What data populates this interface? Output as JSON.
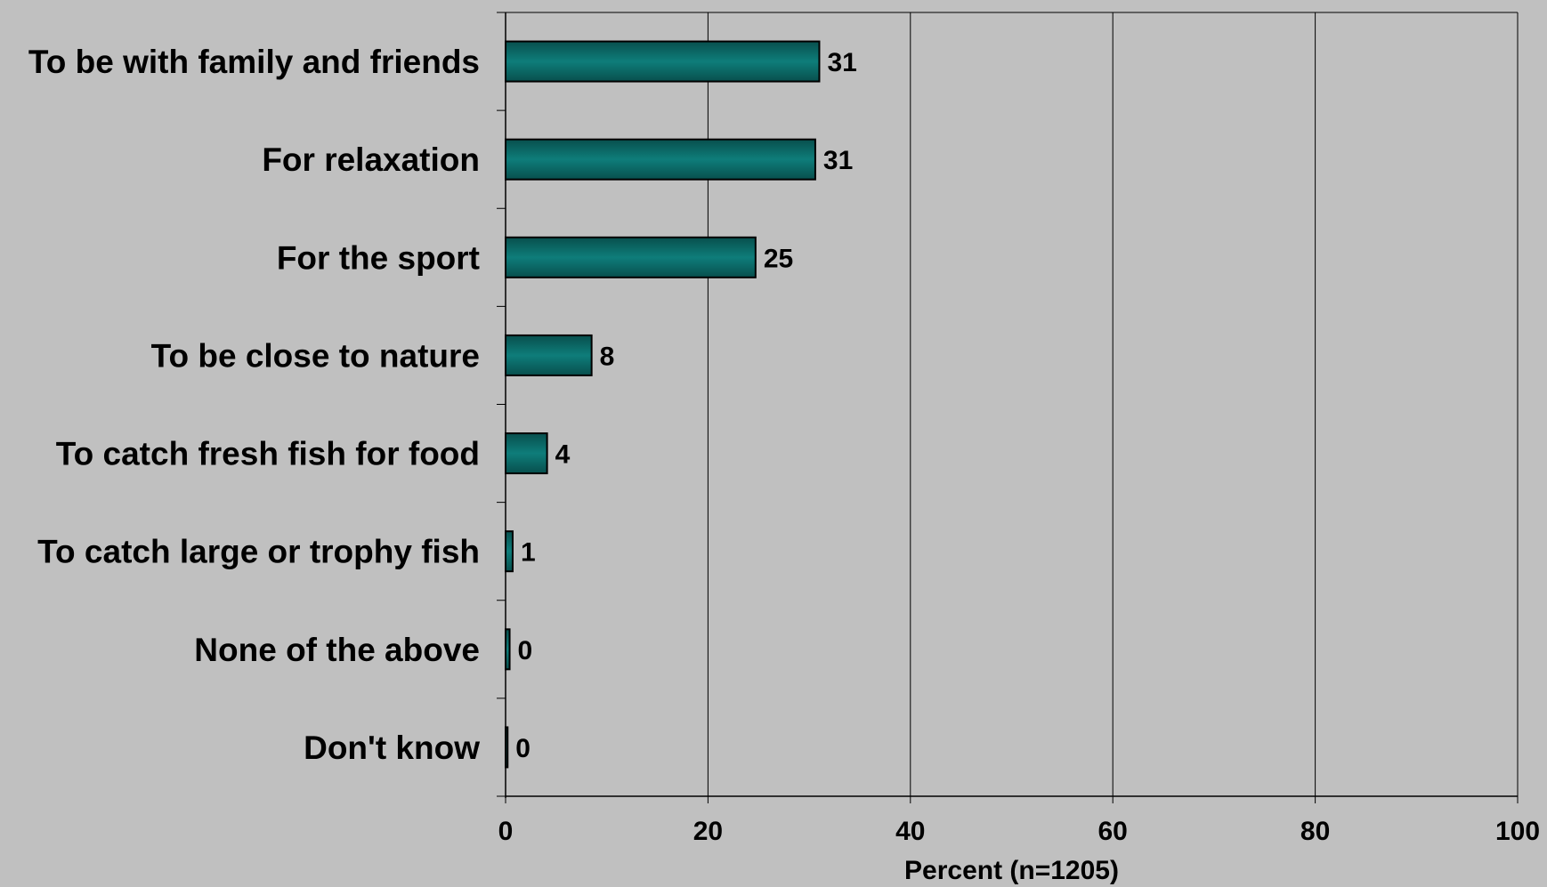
{
  "chart_data": {
    "type": "bar",
    "orientation": "horizontal",
    "categories": [
      "To be with family and friends",
      "For relaxation",
      "For the sport",
      "To be close to nature",
      "To catch fresh fish for food",
      "To catch large or trophy fish",
      "None of the above",
      "Don't know"
    ],
    "values": [
      31,
      30.6,
      24.7,
      8.5,
      4.1,
      0.7,
      0.4,
      0.2
    ],
    "data_labels": [
      "31",
      "31",
      "25",
      "8",
      "4",
      "1",
      "0",
      "0"
    ],
    "xlabel": "Percent (n=1205)",
    "xlim": [
      0,
      100
    ],
    "xticks": [
      0,
      20,
      40,
      60,
      80,
      100
    ],
    "xtick_labels": [
      "0",
      "20",
      "40",
      "60",
      "80",
      "100"
    ],
    "grid": "vertical",
    "legend": "none",
    "colors": {
      "background": "#c0c0c0",
      "bar_fill": "#0e7d7a",
      "bar_fill_dark": "#084f4d",
      "bar_edge": "#000000",
      "grid": "#000000",
      "text": "#000000"
    }
  }
}
